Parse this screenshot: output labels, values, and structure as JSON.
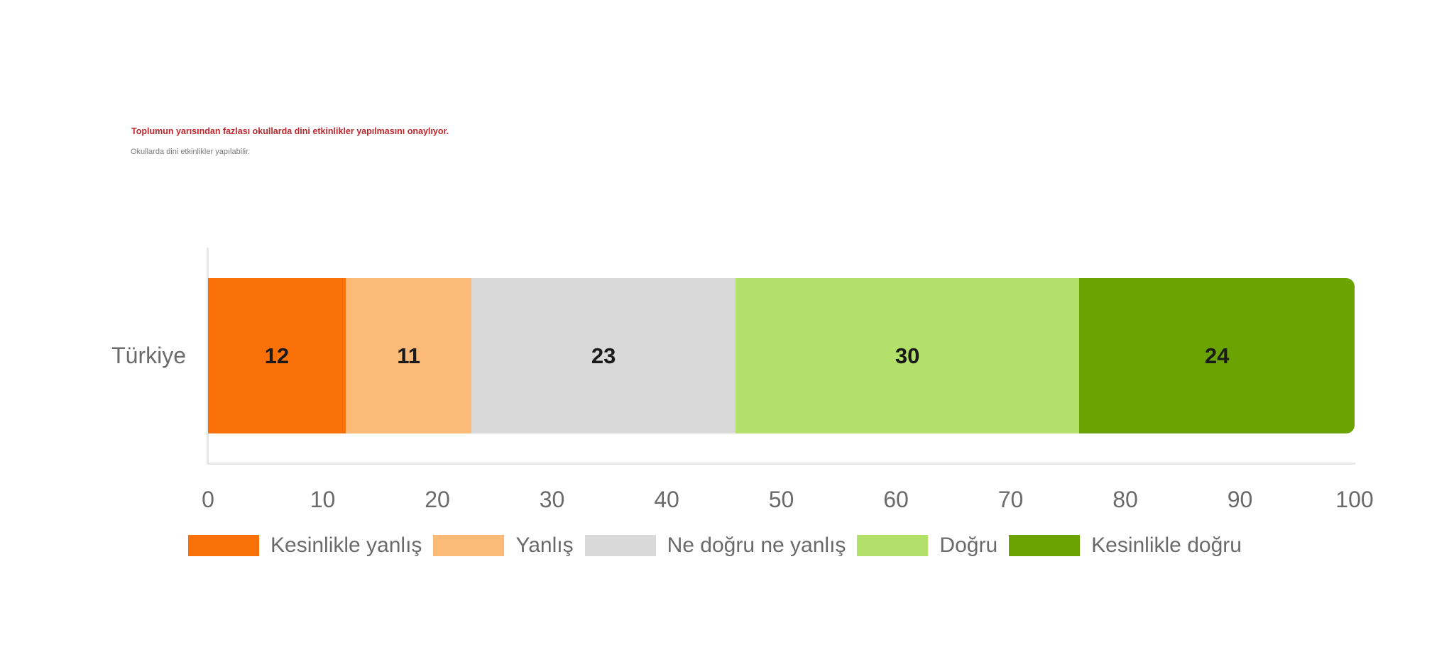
{
  "chart": {
    "title": "Toplumun yarısından fazlası okullarda dini etkinlikler yapılmasını onaylıyor.",
    "subtitle": "Okullarda dini etkinlikler yapılabilir.",
    "title_color": "#C0272D",
    "category": "Türkiye"
  },
  "chart_data": {
    "type": "bar",
    "orientation": "horizontal",
    "stacked": true,
    "title": "Toplumun yarısından fazlası okullarda dini etkinlikler yapılmasını onaylıyor.",
    "subtitle": "Okullarda dini etkinlikler yapılabilir.",
    "categories": [
      "Türkiye"
    ],
    "series": [
      {
        "name": "Kesinlikle yanlış",
        "values": [
          12
        ],
        "color": "#FB7109"
      },
      {
        "name": "Yanlış",
        "values": [
          11
        ],
        "color": "#FCBA78"
      },
      {
        "name": "Ne doğru ne yanlış",
        "values": [
          23
        ],
        "color": "#D9D9D9"
      },
      {
        "name": "Doğru",
        "values": [
          30
        ],
        "color": "#B3E06A"
      },
      {
        "name": "Kesinlikle doğru",
        "values": [
          24
        ],
        "color": "#6BA402"
      }
    ],
    "xlabel": "",
    "ylabel": "",
    "xlim": [
      0,
      100
    ],
    "x_ticks": [
      0,
      10,
      20,
      30,
      40,
      50,
      60,
      70,
      80,
      90,
      100
    ],
    "value_labels_shown": true,
    "grid": false,
    "legend_position": "bottom",
    "axis_color": "#E8E8E8",
    "text_color": "#6A6A6A"
  }
}
